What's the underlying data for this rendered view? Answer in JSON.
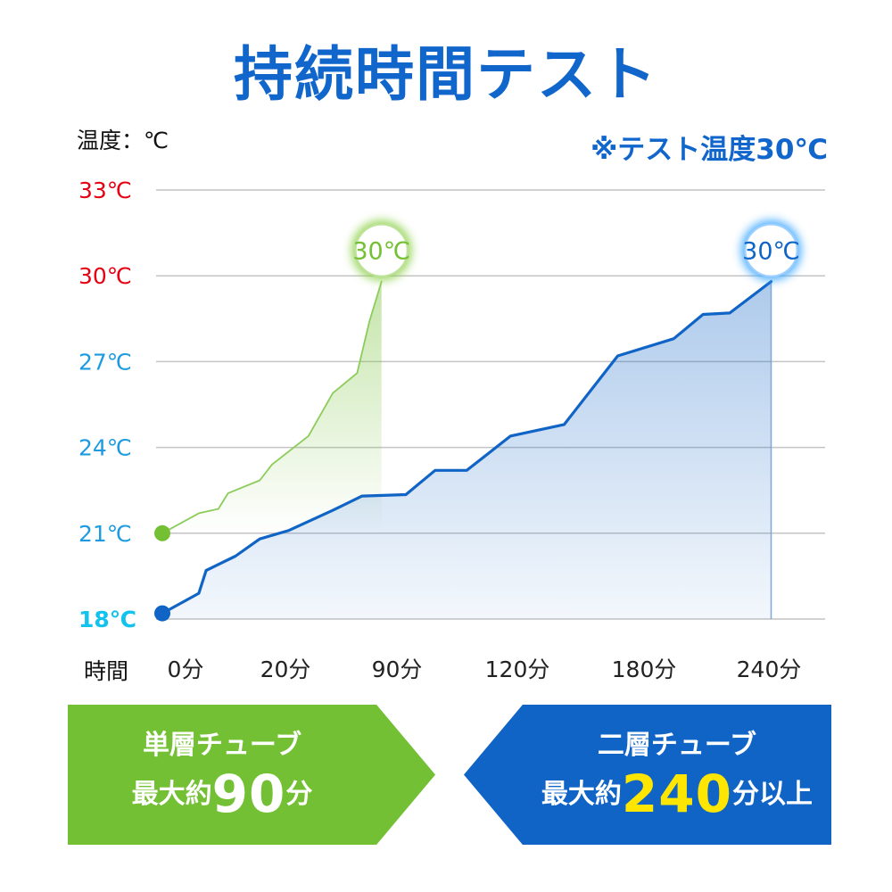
{
  "title": "持続時間テスト",
  "unit_label": "温度：℃",
  "test_note": "※テスト温度30℃",
  "chart_data": {
    "type": "line",
    "title": "持続時間テスト",
    "ylabel": "温度：℃",
    "xlabel": "時間",
    "ylim": [
      18,
      33
    ],
    "y_ticks": [
      {
        "value": 33,
        "label": "33℃",
        "color": "#e60012"
      },
      {
        "value": 30,
        "label": "30℃",
        "color": "#e60012"
      },
      {
        "value": 27,
        "label": "27℃",
        "color": "#1e9be0"
      },
      {
        "value": 24,
        "label": "24℃",
        "color": "#1e9be0"
      },
      {
        "value": 21,
        "label": "21℃",
        "color": "#1e9be0"
      },
      {
        "value": 18,
        "label": "18℃",
        "color": "#12c3ee"
      }
    ],
    "x_ticks": [
      {
        "label": "0分",
        "color": "#222222"
      },
      {
        "label": "20分",
        "color": "#222222"
      },
      {
        "label": "90分",
        "color": "#74c034"
      },
      {
        "label": "120分",
        "color": "#222222"
      },
      {
        "label": "180分",
        "color": "#222222"
      },
      {
        "label": "240分",
        "color": "#1064c6"
      }
    ],
    "series": [
      {
        "key": "single",
        "color": "#8ccc5a",
        "marker_color": "#74c034",
        "end_label": "30℃",
        "points": [
          [
            0,
            21
          ],
          [
            15,
            21.7
          ],
          [
            23,
            21.85
          ],
          [
            27,
            22.4
          ],
          [
            40,
            22.85
          ],
          [
            45,
            23.4
          ],
          [
            60,
            24.4
          ],
          [
            70,
            25.9
          ],
          [
            80,
            26.6
          ],
          [
            85,
            28.4
          ],
          [
            90,
            29.8
          ]
        ]
      },
      {
        "key": "double",
        "color": "#1064c6",
        "marker_color": "#1064c6",
        "end_label": "30℃",
        "points": [
          [
            0,
            18.2
          ],
          [
            15,
            18.9
          ],
          [
            18,
            19.7
          ],
          [
            30,
            20.2
          ],
          [
            40,
            20.8
          ],
          [
            52,
            21.1
          ],
          [
            70,
            21.8
          ],
          [
            82,
            22.3
          ],
          [
            100,
            22.35
          ],
          [
            112,
            23.2
          ],
          [
            125,
            23.2
          ],
          [
            143,
            24.4
          ],
          [
            165,
            24.8
          ],
          [
            187,
            27.2
          ],
          [
            210,
            27.8
          ],
          [
            222,
            28.65
          ],
          [
            233,
            28.7
          ],
          [
            250,
            29.8
          ]
        ]
      }
    ]
  },
  "banners": {
    "left": {
      "name": "単層チューブ",
      "prefix": "最大約",
      "number": "90",
      "suffix": "分"
    },
    "right": {
      "name": "二層チューブ",
      "prefix": "最大約",
      "number": "240",
      "suffix": "分以上"
    }
  }
}
